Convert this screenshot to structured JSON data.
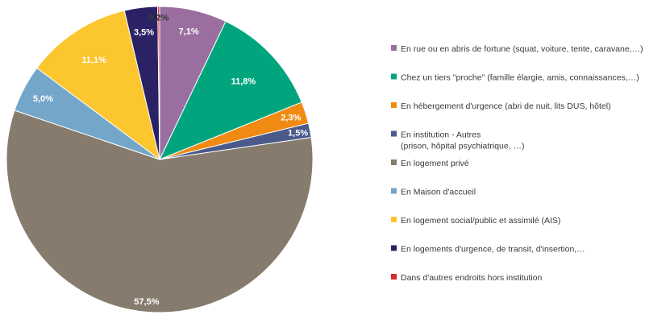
{
  "chart_data": {
    "type": "pie",
    "slices": [
      {
        "legend": [
          "En rue ou en abris de fortune  (squat, voiture, tente, caravane,…)"
        ],
        "label": "7,1%",
        "value": 7.1,
        "color": "#9a6fa0",
        "label_color": "#ffffff"
      },
      {
        "legend": [
          "Chez un tiers \"proche\" (famille élargie, amis, connaissances,…)"
        ],
        "label": "11,8%",
        "value": 11.8,
        "color": "#00a57e",
        "label_color": "#ffffff"
      },
      {
        "legend": [
          "En hébergement d'urgence (abri de nuit, lits DUS, hôtel)"
        ],
        "label": "2,3%",
        "value": 2.3,
        "color": "#f08a12",
        "label_color": "#ffffff"
      },
      {
        "legend": [
          "En institution - Autres",
          "(prison, hôpital psychiatrique, …)"
        ],
        "label": "1,5%",
        "value": 1.5,
        "color": "#4a5a8a",
        "label_color": "#ffffff"
      },
      {
        "legend": [
          "En logement privé"
        ],
        "label": "57,5%",
        "value": 57.5,
        "color": "#867b6c",
        "label_color": "#ffffff"
      },
      {
        "legend": [
          "En Maison d'accueil"
        ],
        "label": "5,0%",
        "value": 5.0,
        "color": "#74a6c9",
        "label_color": "#ffffff"
      },
      {
        "legend": [
          "En logement social/public et assimilé (AIS)"
        ],
        "label": "11,1%",
        "value": 11.1,
        "color": "#fcc62f",
        "label_color": "#ffffff"
      },
      {
        "legend": [
          "En logements d'urgence, de transit, d'insertion,…"
        ],
        "label": "3,5%",
        "value": 3.5,
        "color": "#2b2266",
        "label_color": "#ffffff"
      },
      {
        "legend": [
          "Dans d'autres endroits hors institution"
        ],
        "label": "0,2%",
        "value": 0.2,
        "color": "#d42a2a",
        "label_color": "#3a3a3a"
      }
    ],
    "start_angle": "12 o'clock",
    "direction": "clockwise",
    "legend_position": "right"
  }
}
